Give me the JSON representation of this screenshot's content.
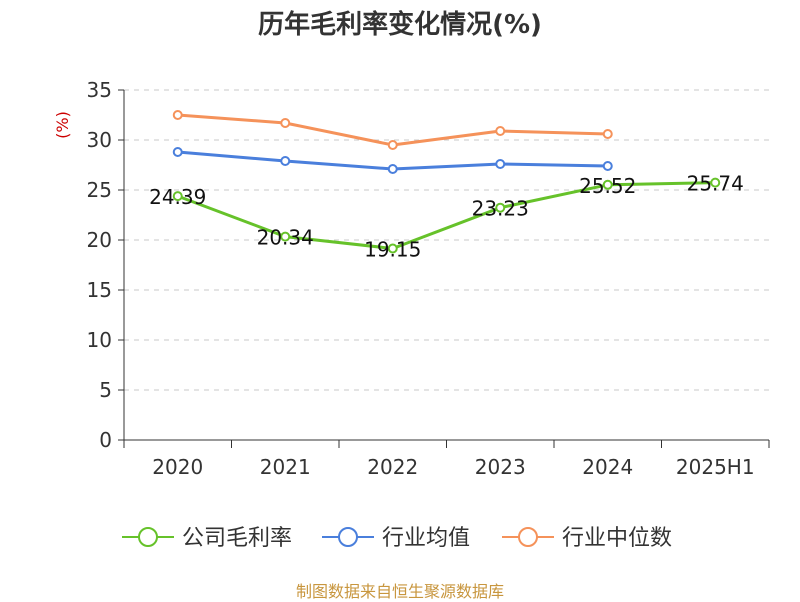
{
  "source": "制图数据来自恒生聚源数据库",
  "colors": {
    "company": "#66c22a",
    "industry_avg": "#4a7fdc",
    "industry_median": "#f5925a",
    "ylabel": "#cc0000",
    "source": "#c8963e"
  },
  "chart_data": {
    "type": "line",
    "title": "历年毛利率变化情况(%)",
    "ylabel": "(%)",
    "xlabel": "",
    "categories": [
      "2020",
      "2021",
      "2022",
      "2023",
      "2024",
      "2025H1"
    ],
    "ylim": [
      0,
      35
    ],
    "yticks": [
      0,
      5,
      10,
      15,
      20,
      25,
      30,
      35
    ],
    "grid": true,
    "legend": "bottom",
    "series": [
      {
        "name": "公司毛利率",
        "color": "#66c22a",
        "values": [
          24.39,
          20.34,
          19.15,
          23.23,
          25.52,
          25.74
        ],
        "labels": [
          "24.39",
          "20.34",
          "19.15",
          "23.23",
          "25.52",
          "25.74"
        ]
      },
      {
        "name": "行业均值",
        "color": "#4a7fdc",
        "values": [
          28.8,
          27.9,
          27.1,
          27.6,
          27.4,
          null
        ]
      },
      {
        "name": "行业中位数",
        "color": "#f5925a",
        "values": [
          32.5,
          31.7,
          29.5,
          30.9,
          30.6,
          null
        ]
      }
    ]
  }
}
